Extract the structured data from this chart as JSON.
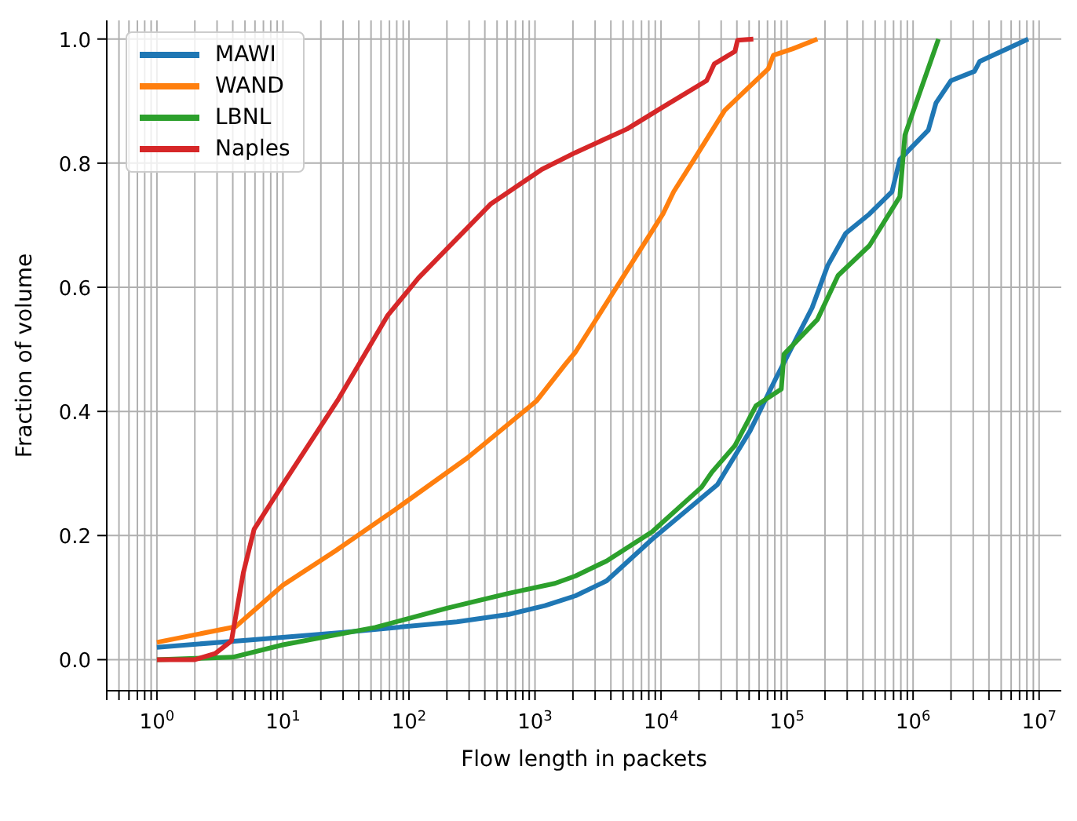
{
  "chart_data": {
    "type": "line",
    "xlabel": "Flow length in packets",
    "ylabel": "Fraction of volume",
    "log": "x",
    "grid": true,
    "legend": "top left",
    "xlim": [
      0.4,
      15000000
    ],
    "ylim": [
      -0.05,
      1.03
    ],
    "xticks": [
      {
        "value": 0.4,
        "label": null
      },
      {
        "value": 0.5,
        "label": null
      },
      {
        "value": 0.6,
        "label": null
      },
      {
        "value": 0.7,
        "label": null
      },
      {
        "value": 0.8,
        "label": null
      },
      {
        "value": 0.9,
        "label": null
      },
      {
        "value": 1,
        "label": "10$^{0}$"
      },
      {
        "value": 2,
        "label": null
      },
      {
        "value": 3,
        "label": null
      },
      {
        "value": 4,
        "label": null
      },
      {
        "value": 5,
        "label": null
      },
      {
        "value": 6,
        "label": null
      },
      {
        "value": 7,
        "label": null
      },
      {
        "value": 8,
        "label": null
      },
      {
        "value": 9,
        "label": null
      },
      {
        "value": 10,
        "label": "10$^{1}$"
      },
      {
        "value": 20,
        "label": null
      },
      {
        "value": 30,
        "label": null
      },
      {
        "value": 40,
        "label": null
      },
      {
        "value": 50,
        "label": null
      },
      {
        "value": 60,
        "label": null
      },
      {
        "value": 70,
        "label": null
      },
      {
        "value": 80,
        "label": null
      },
      {
        "value": 90,
        "label": null
      },
      {
        "value": 100,
        "label": "10$^{2}$"
      },
      {
        "value": 200,
        "label": null
      },
      {
        "value": 300,
        "label": null
      },
      {
        "value": 400,
        "label": null
      },
      {
        "value": 500,
        "label": null
      },
      {
        "value": 600,
        "label": null
      },
      {
        "value": 700,
        "label": null
      },
      {
        "value": 800,
        "label": null
      },
      {
        "value": 900,
        "label": null
      },
      {
        "value": 1000,
        "label": "10$^{3}$"
      },
      {
        "value": 2000,
        "label": null
      },
      {
        "value": 3000,
        "label": null
      },
      {
        "value": 4000,
        "label": null
      },
      {
        "value": 5000,
        "label": null
      },
      {
        "value": 6000,
        "label": null
      },
      {
        "value": 7000,
        "label": null
      },
      {
        "value": 8000,
        "label": null
      },
      {
        "value": 9000,
        "label": null
      },
      {
        "value": 10000,
        "label": "10$^{4}$"
      },
      {
        "value": 20000,
        "label": null
      },
      {
        "value": 30000,
        "label": null
      },
      {
        "value": 40000,
        "label": null
      },
      {
        "value": 50000,
        "label": null
      },
      {
        "value": 60000,
        "label": null
      },
      {
        "value": 70000,
        "label": null
      },
      {
        "value": 80000,
        "label": null
      },
      {
        "value": 90000,
        "label": null
      },
      {
        "value": 100000,
        "label": "10$^{5}$"
      },
      {
        "value": 200000,
        "label": null
      },
      {
        "value": 300000,
        "label": null
      },
      {
        "value": 400000,
        "label": null
      },
      {
        "value": 500000,
        "label": null
      },
      {
        "value": 600000,
        "label": null
      },
      {
        "value": 700000,
        "label": null
      },
      {
        "value": 800000,
        "label": null
      },
      {
        "value": 900000,
        "label": null
      },
      {
        "value": 1000000,
        "label": "10$^{6}$"
      },
      {
        "value": 2000000,
        "label": null
      },
      {
        "value": 3000000,
        "label": null
      },
      {
        "value": 4000000,
        "label": null
      },
      {
        "value": 5000000,
        "label": null
      },
      {
        "value": 6000000,
        "label": null
      },
      {
        "value": 7000000,
        "label": null
      },
      {
        "value": 8000000,
        "label": null
      },
      {
        "value": 9000000,
        "label": null
      },
      {
        "value": 10000000,
        "label": "10$^{7}$"
      }
    ],
    "yticks": [
      {
        "value": 0,
        "label": "0.0"
      },
      {
        "value": 0.2,
        "label": "0.2"
      },
      {
        "value": 0.4,
        "label": "0.4"
      },
      {
        "value": 0.6,
        "label": "0.6"
      },
      {
        "value": 0.8,
        "label": "0.8"
      },
      {
        "value": 1,
        "label": "1.0"
      }
    ],
    "series": [
      {
        "name": "MAWI",
        "color": "#1f77b4",
        "x": [
          1,
          5.6,
          30,
          240,
          620,
          1200,
          2100,
          3700,
          8500,
          28000,
          51000,
          81000,
          158000,
          210000,
          292000,
          450000,
          680000,
          785000,
          1320000,
          1520000,
          2000000,
          3070000,
          3380000,
          8200000
        ],
        "values": [
          0.02,
          0.032,
          0.044,
          0.061,
          0.073,
          0.087,
          0.103,
          0.127,
          0.194,
          0.282,
          0.369,
          0.452,
          0.567,
          0.635,
          0.687,
          0.718,
          0.754,
          0.806,
          0.853,
          0.897,
          0.933,
          0.948,
          0.964,
          1.0
        ]
      },
      {
        "name": "WAND",
        "color": "#ff7f0e",
        "x": [
          1,
          4.2,
          10,
          26,
          78,
          290,
          1030,
          1740,
          2100,
          10350,
          12600,
          18300,
          32000,
          46700,
          71000,
          78000,
          110000,
          174000
        ],
        "values": [
          0.028,
          0.053,
          0.12,
          0.175,
          0.242,
          0.325,
          0.417,
          0.476,
          0.496,
          0.718,
          0.754,
          0.806,
          0.885,
          0.917,
          0.952,
          0.974,
          0.984,
          1.0
        ]
      },
      {
        "name": "LBNL",
        "color": "#2ca02c",
        "x": [
          1,
          4,
          10,
          54,
          200,
          620,
          1440,
          2100,
          3700,
          8500,
          21000,
          25300,
          38600,
          56600,
          90000,
          94500,
          174000,
          254000,
          450000,
          785000,
          861000,
          1590000
        ],
        "values": [
          0,
          0.004,
          0.024,
          0.052,
          0.083,
          0.107,
          0.123,
          0.135,
          0.159,
          0.206,
          0.278,
          0.302,
          0.345,
          0.409,
          0.436,
          0.492,
          0.548,
          0.619,
          0.667,
          0.746,
          0.845,
          1.0
        ]
      },
      {
        "name": "Naples",
        "color": "#d62728",
        "x": [
          1,
          2,
          2.9,
          3.9,
          4.85,
          5.9,
          9.8,
          27.6,
          68,
          119,
          444,
          1135,
          2090,
          5370,
          10850,
          23000,
          26500,
          38600,
          40500,
          54000
        ],
        "values": [
          0,
          0,
          0.01,
          0.03,
          0.14,
          0.21,
          0.28,
          0.42,
          0.555,
          0.615,
          0.734,
          0.79,
          0.817,
          0.855,
          0.893,
          0.933,
          0.96,
          0.98,
          0.998,
          1.0
        ]
      }
    ]
  }
}
